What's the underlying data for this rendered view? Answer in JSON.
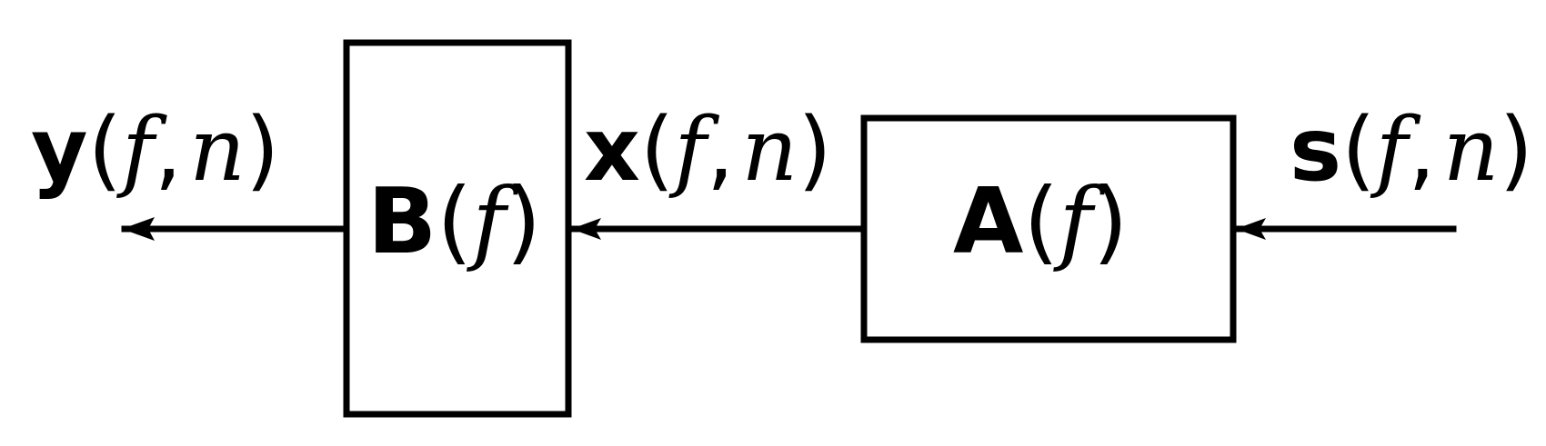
{
  "blocks": {
    "B": {
      "symbol": "B",
      "arg": "f"
    },
    "A": {
      "symbol": "A",
      "arg": "f"
    }
  },
  "signals": {
    "y": {
      "symbol": "y",
      "args": [
        "f",
        "n"
      ]
    },
    "x": {
      "symbol": "x",
      "args": [
        "f",
        "n"
      ]
    },
    "s": {
      "symbol": "s",
      "args": [
        "f",
        "n"
      ]
    }
  },
  "punct": {
    "open": "(",
    "close": ")",
    "comma": ","
  },
  "colors": {
    "stroke": "#000000",
    "background": "#ffffff"
  }
}
